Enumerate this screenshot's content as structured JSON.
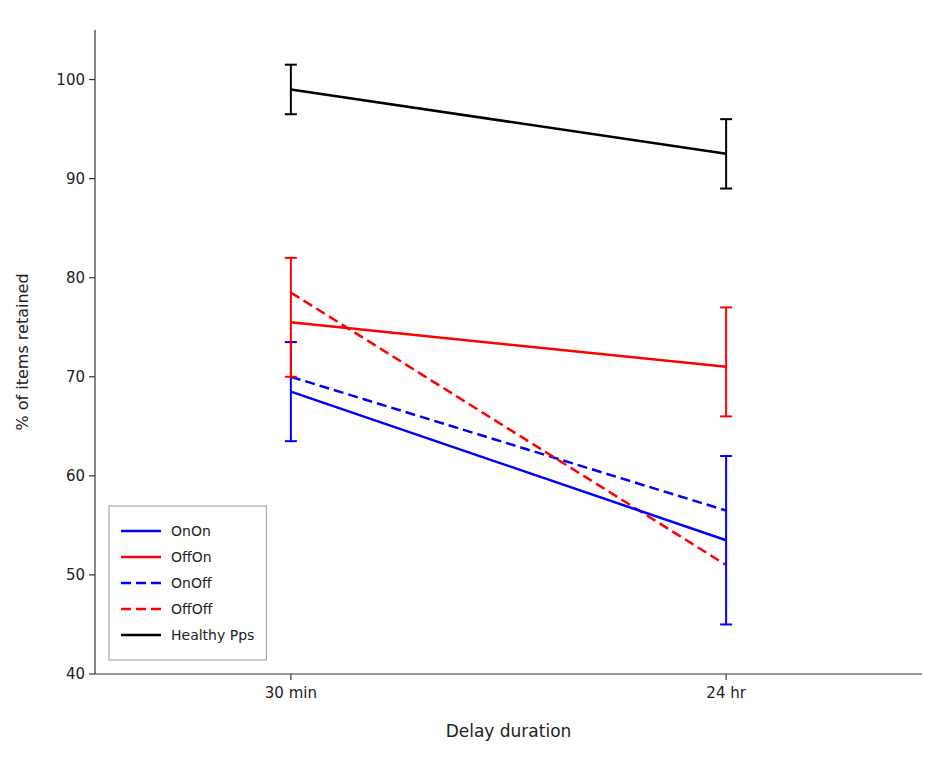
{
  "chart_data": {
    "type": "line",
    "xlabel": "Delay duration",
    "ylabel": "% of items retained",
    "categories": [
      "30 min",
      "24 hr"
    ],
    "series": [
      {
        "name": "OnOn",
        "color": "#0000FF",
        "line_style": "solid",
        "values": [
          68.5,
          53.5
        ],
        "error_low": [
          5.0,
          8.5
        ],
        "error_high": [
          5.0,
          8.5
        ]
      },
      {
        "name": "OffOn",
        "color": "#FF0000",
        "line_style": "solid",
        "values": [
          75.5,
          71.0
        ],
        "error_low": [
          5.5,
          5.0
        ],
        "error_high": [
          6.5,
          6.0
        ]
      },
      {
        "name": "OnOff",
        "color": "#0000FF",
        "line_style": "dashed",
        "values": [
          70.0,
          56.5
        ]
      },
      {
        "name": "OffOff",
        "color": "#FF0000",
        "line_style": "dashed",
        "values": [
          78.5,
          51.0
        ]
      },
      {
        "name": "Healthy Pps",
        "color": "#000000",
        "line_style": "solid",
        "values": [
          99.0,
          92.5
        ],
        "error_low": [
          2.5,
          3.5
        ],
        "error_high": [
          2.5,
          3.5
        ]
      }
    ],
    "ylim": [
      40,
      105
    ],
    "yticks": [
      40,
      50,
      60,
      70,
      80,
      90,
      100
    ],
    "grid": false,
    "legend": "lower left"
  }
}
